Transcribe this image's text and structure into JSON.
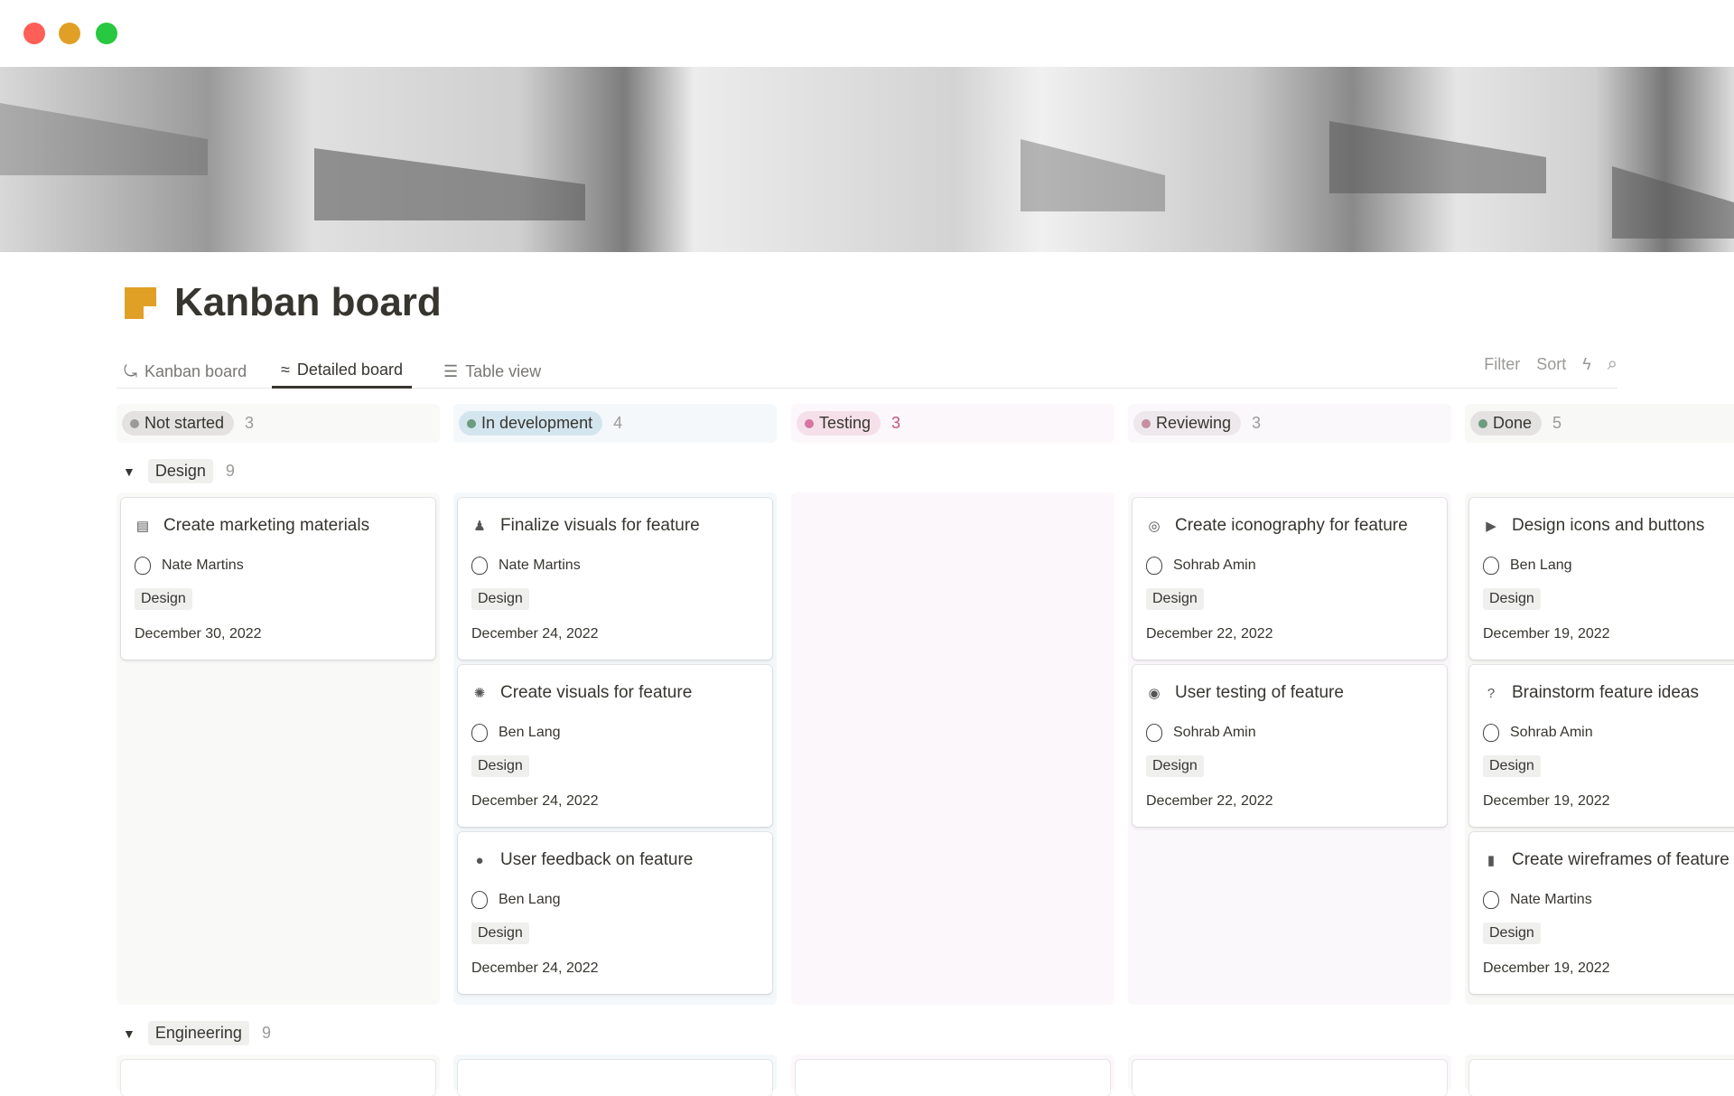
{
  "window": {
    "controls": [
      "close",
      "minimize",
      "maximize"
    ],
    "colors": {
      "close": "#fe5f57",
      "minimize": "#e0a026",
      "maximize": "#28c840"
    }
  },
  "page": {
    "title": "Kanban board",
    "icon": "sticky-note-icon",
    "icon_color": "#e0a026"
  },
  "tabs": [
    {
      "label": "Kanban board",
      "icon": "kanban-icon",
      "active": false
    },
    {
      "label": "Detailed board",
      "icon": "waves-icon",
      "active": true
    },
    {
      "label": "Table view",
      "icon": "list-icon",
      "active": false
    }
  ],
  "toolbar": {
    "filter": "Filter",
    "sort": "Sort",
    "automation_icon": "lightning-icon",
    "search_icon": "search-icon"
  },
  "columns": [
    {
      "label": "Not started",
      "count": "3",
      "dot": "#9b9a97",
      "pill": "#e3e2e0",
      "bg": "#f9f9f8"
    },
    {
      "label": "In development",
      "count": "4",
      "dot": "#6c9b7d",
      "pill": "#d3e5ef",
      "bg": "#f4f8fa"
    },
    {
      "label": "Testing",
      "count": "3",
      "dot": "#d9739f",
      "pill": "#f5e0e9",
      "bg": "#fcf7fa",
      "count_color": "#c1537f"
    },
    {
      "label": "Reviewing",
      "count": "3",
      "dot": "#c4909f",
      "pill": "#eee8ec",
      "bg": "#faf8fa"
    },
    {
      "label": "Done",
      "count": "5",
      "dot": "#6c9b7d",
      "pill": "#e3e2e0",
      "bg": "#f8f8f7"
    }
  ],
  "groups": [
    {
      "label": "Design",
      "count": "9"
    },
    {
      "label": "Engineering",
      "count": "9"
    }
  ],
  "cards": [
    [
      {
        "title": "Create marketing materials",
        "icon": "newspaper-icon",
        "person": "Nate Martins",
        "tag": "Design",
        "date": "December 30, 2022"
      }
    ],
    [
      {
        "title": "Finalize visuals for feature",
        "icon": "brush-icon",
        "person": "Nate Martins",
        "tag": "Design",
        "date": "December 24, 2022"
      },
      {
        "title": "Create visuals for feature",
        "icon": "palette-icon",
        "person": "Ben Lang",
        "tag": "Design",
        "date": "December 24, 2022"
      },
      {
        "title": "User feedback on feature",
        "icon": "chat-bubble-icon",
        "person": "Ben Lang",
        "tag": "Design",
        "date": "December 24, 2022"
      }
    ],
    [],
    [
      {
        "title": "Create iconography for feature",
        "icon": "target-icon",
        "person": "Sohrab Amin",
        "tag": "Design",
        "date": "December 22, 2022"
      },
      {
        "title": "User testing of feature",
        "icon": "user-circle-icon",
        "person": "Sohrab Amin",
        "tag": "Design",
        "date": "December 22, 2022"
      }
    ],
    [
      {
        "title": "Design icons and buttons",
        "icon": "play-circle-icon",
        "person": "Ben Lang",
        "tag": "Design",
        "date": "December 19, 2022"
      },
      {
        "title": "Brainstorm feature ideas",
        "icon": "question-bubble-icon",
        "person": "Sohrab Amin",
        "tag": "Design",
        "date": "December 19, 2022"
      },
      {
        "title": "Create wireframes of feature",
        "icon": "phone-icon",
        "person": "Nate Martins",
        "tag": "Design",
        "date": "December 19, 2022"
      }
    ]
  ]
}
